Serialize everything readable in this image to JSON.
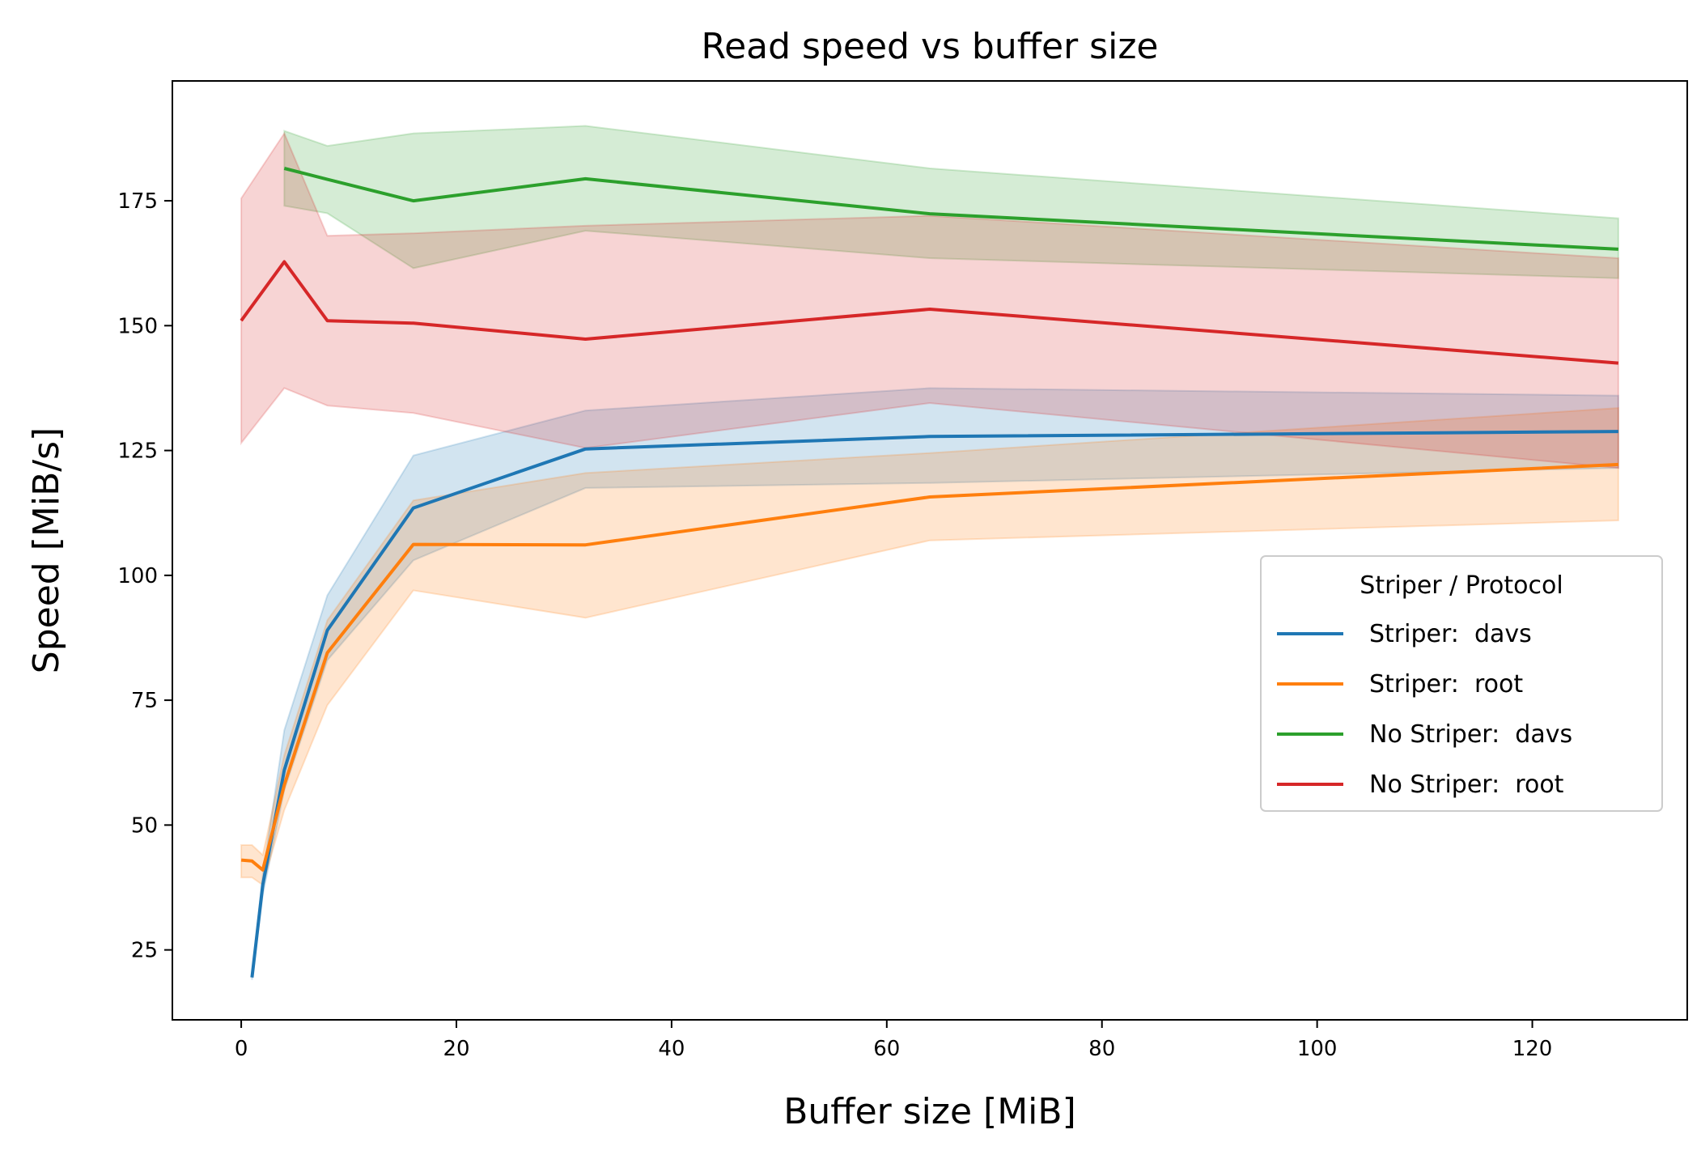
{
  "chart_data": {
    "type": "line",
    "title": "Read speed vs buffer size",
    "xlabel": "Buffer size [MiB]",
    "ylabel": "Speed [MiB/s]",
    "xlim": [
      -6.4,
      134.4
    ],
    "ylim": [
      11,
      199
    ],
    "xticks": [
      0,
      20,
      40,
      60,
      80,
      100,
      120
    ],
    "yticks": [
      25,
      50,
      75,
      100,
      125,
      150,
      175
    ],
    "grid": false,
    "legend": {
      "title": "Striper / Protocol",
      "placement": "center-right"
    },
    "series": [
      {
        "name": "Striper:  davs",
        "color": "#1f77b4",
        "x": [
          1,
          2,
          4,
          8,
          16,
          32,
          64,
          128
        ],
        "y": [
          19.5,
          38,
          61,
          89,
          113.5,
          125.3,
          127.8,
          128.8
        ],
        "lower": [
          19,
          36,
          57,
          83,
          103,
          117.5,
          118.5,
          121.5
        ],
        "upper": [
          20,
          40,
          69,
          96,
          124,
          133,
          137.5,
          136
        ]
      },
      {
        "name": "Striper:  root",
        "color": "#ff7f0e",
        "x": [
          0,
          1,
          2,
          4,
          8,
          16,
          32,
          64,
          128
        ],
        "y": [
          43,
          42.8,
          41,
          58,
          84.5,
          106.2,
          106.1,
          115.7,
          122.2
        ],
        "lower": [
          39.5,
          39.5,
          38,
          53,
          74,
          97,
          91.5,
          107,
          111
        ],
        "upper": [
          46,
          46,
          44,
          64,
          91,
          115,
          120.5,
          124.5,
          133.5
        ]
      },
      {
        "name": "No Striper:  davs",
        "color": "#2ca02c",
        "x": [
          4,
          8,
          16,
          32,
          64,
          128
        ],
        "y": [
          181.5,
          179.3,
          175,
          179.4,
          172.4,
          165.3
        ],
        "lower": [
          174,
          172.5,
          161.5,
          169,
          163.5,
          159.5
        ],
        "upper": [
          189,
          186,
          188.5,
          190,
          181.5,
          171.5
        ]
      },
      {
        "name": "No Striper:  root",
        "color": "#d62728",
        "x": [
          0,
          4,
          8,
          16,
          32,
          64,
          128
        ],
        "y": [
          151,
          162.8,
          151,
          150.5,
          147.3,
          153.3,
          142.5
        ],
        "lower": [
          126.5,
          137.5,
          134,
          132.5,
          125.5,
          134.5,
          121.5
        ],
        "upper": [
          175.5,
          188.5,
          168,
          168.5,
          170,
          172,
          163.5
        ]
      }
    ]
  }
}
